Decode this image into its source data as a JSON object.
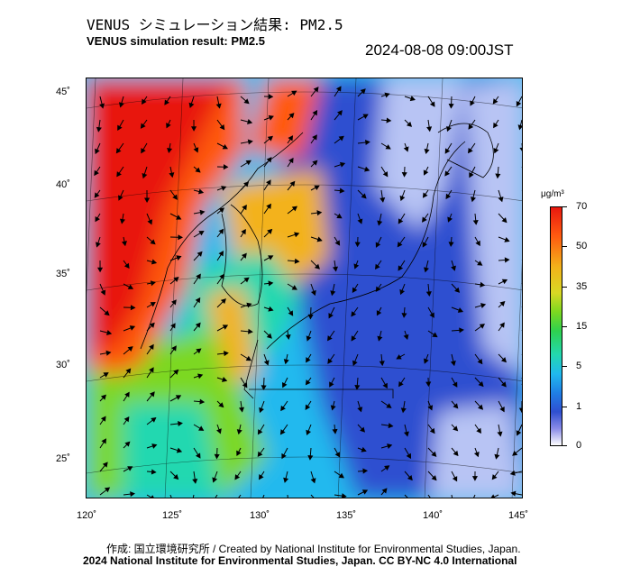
{
  "title_jp": "VENUS シミュレーション結果: PM2.5",
  "title_en": "VENUS simulation result: PM2.5",
  "timestamp": "2024-08-08 09:00JST",
  "map": {
    "lon_labels": [
      "120˚",
      "125˚",
      "130˚",
      "135˚",
      "140˚",
      "145˚"
    ],
    "lat_labels": [
      "45˚",
      "40˚",
      "35˚",
      "30˚",
      "25˚"
    ],
    "colors": {
      "very_high": "#e8180f",
      "high": "#ff5a10",
      "medium_high": "#f3b21a",
      "medium": "#7cd820",
      "low_medium": "#23d8b0",
      "low": "#20b9ee",
      "very_low": "#2f4fd0",
      "minimal": "#b8c4f4"
    }
  },
  "colorbar": {
    "unit": "μg/m³",
    "labels": [
      "70",
      "50",
      "35",
      "15",
      "5",
      "1",
      "0"
    ]
  },
  "footer": {
    "line1": "作成: 国立環境研究所 / Created by National Institute for Environmental Studies, Japan.",
    "line2": "2024 National Institute for Environmental Studies, Japan. CC BY-NC 4.0 International"
  }
}
